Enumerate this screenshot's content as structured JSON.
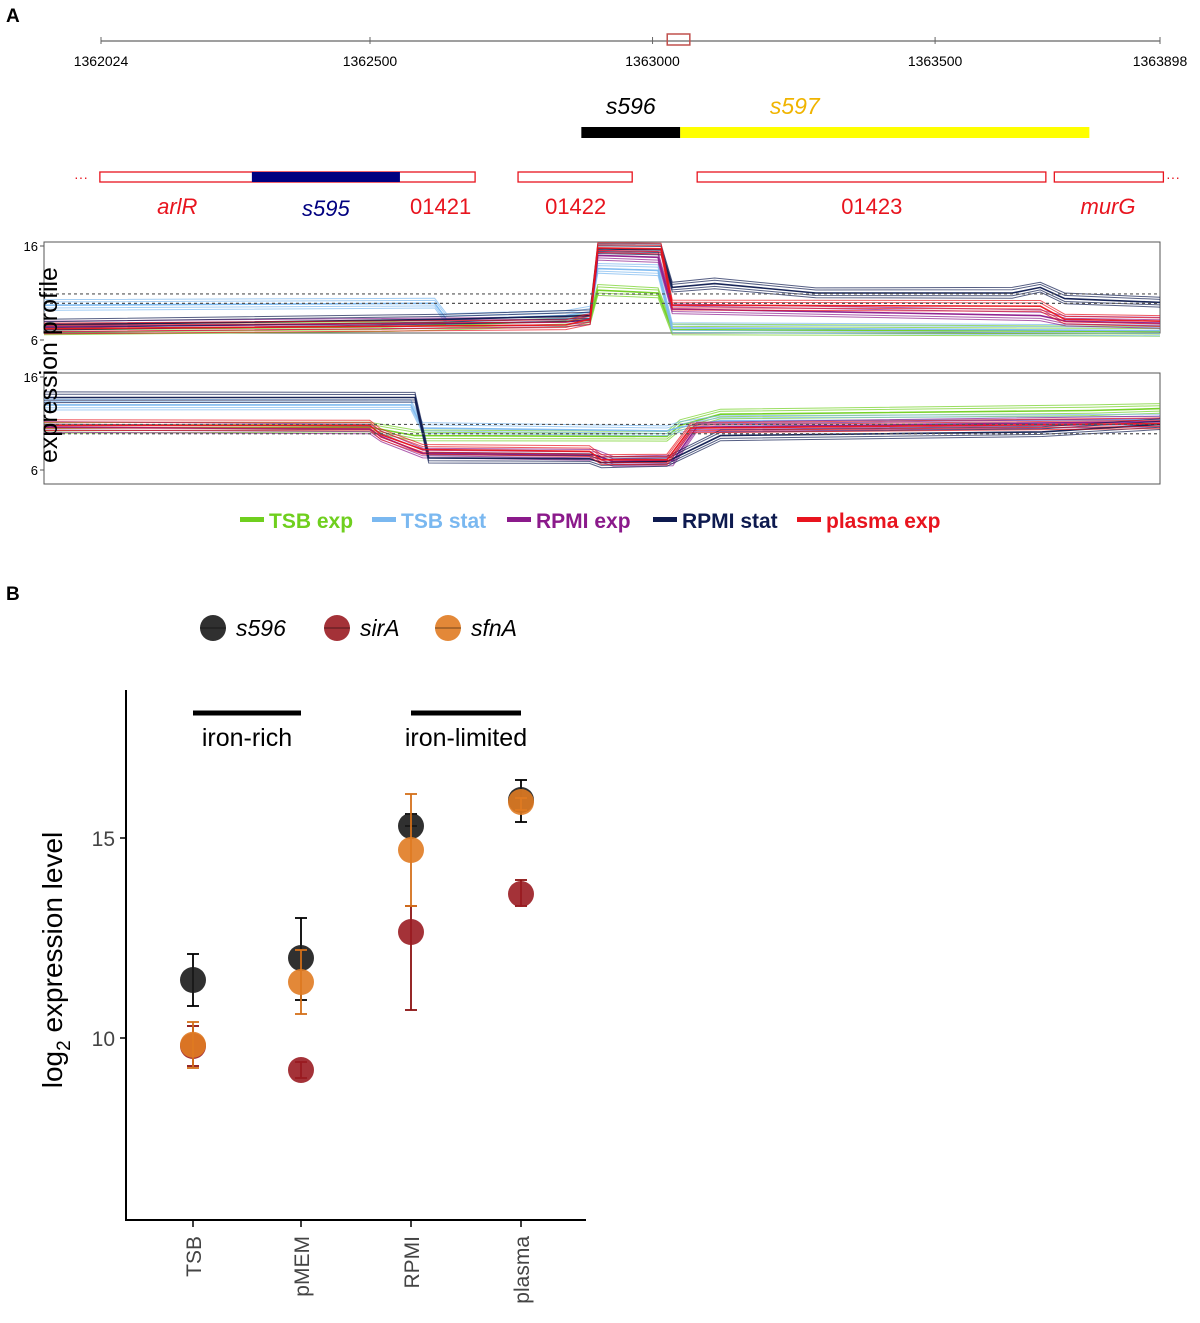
{
  "chart_data": [
    {
      "type": "genome-track",
      "panel_label": "A",
      "axis": {
        "min": 1362024,
        "max": 1363898,
        "ticks": [
          1362024,
          1362500,
          1363000,
          1363500,
          1363898
        ],
        "tick_labels": [
          "1362024",
          "1362500",
          "1363000",
          "1363500",
          "1363898"
        ]
      },
      "highlight": [
        1363026,
        1363066
      ],
      "srnas": [
        {
          "name": "s596",
          "start": 1362874,
          "end": 1363049,
          "color": "#000000",
          "label_color": "#000000"
        },
        {
          "name": "s597",
          "start": 1363049,
          "end": 1363773,
          "color": "#ffff00",
          "label_color": "#f0b400"
        }
      ],
      "genes": [
        {
          "name": "arlR",
          "italic": true,
          "start": 1362022,
          "end": 1362686,
          "label_pos": 1362159
        },
        {
          "name": "01421",
          "italic": false,
          "start": 1362022,
          "end": 1362686,
          "label_pos": 1362625
        },
        {
          "name": "01422",
          "italic": false,
          "start": 1362762,
          "end": 1362964,
          "label_pos": 1362864
        },
        {
          "name": "01423",
          "italic": false,
          "start": 1363079,
          "end": 1363696,
          "label_pos": 1363388
        },
        {
          "name": "murG",
          "italic": true,
          "start": 1363711,
          "end": 1363904,
          "label_pos": 1363806
        }
      ],
      "inner_features": [
        {
          "name": "s595",
          "italic": true,
          "start": 1362291,
          "end": 1362553,
          "color": "#000080"
        }
      ],
      "gene_color": "#e8141e"
    },
    {
      "type": "line",
      "ylabel": "expression profile",
      "ylim": [
        6,
        16
      ],
      "yticks": [
        "16",
        "6"
      ],
      "thresholds_top": [
        10.9,
        9.9
      ],
      "thresholds_bottom": [
        10.9,
        9.9
      ],
      "legend": [
        {
          "name": "TSB exp",
          "color": "#6fcf1e"
        },
        {
          "name": "TSB stat",
          "color": "#7ab8f0"
        },
        {
          "name": "RPMI exp",
          "color": "#8b1a8b"
        },
        {
          "name": "RPMI stat",
          "color": "#0d1a4f"
        },
        {
          "name": "plasma exp",
          "color": "#e8141e"
        }
      ],
      "top_strand": [
        {
          "name": "TSB exp",
          "points": [
            [
              1362024,
              7.1
            ],
            [
              1362600,
              7.4
            ],
            [
              1362900,
              8.0
            ],
            [
              1362941,
              8.2
            ],
            [
              1362954,
              11.3
            ],
            [
              1363055,
              11.0
            ],
            [
              1363079,
              7.1
            ],
            [
              1363898,
              6.9
            ]
          ]
        },
        {
          "name": "TSB stat",
          "points": [
            [
              1362024,
              9.7
            ],
            [
              1362680,
              9.9
            ],
            [
              1362700,
              8.2
            ],
            [
              1362900,
              8.6
            ],
            [
              1362941,
              9.0
            ],
            [
              1362954,
              13.6
            ],
            [
              1363055,
              13.4
            ],
            [
              1363079,
              7.3
            ],
            [
              1363898,
              7.0
            ]
          ]
        },
        {
          "name": "RPMI exp",
          "points": [
            [
              1362024,
              7.4
            ],
            [
              1362900,
              7.9
            ],
            [
              1362941,
              8.2
            ],
            [
              1362954,
              15.0
            ],
            [
              1363055,
              14.8
            ],
            [
              1363079,
              9.3
            ],
            [
              1363697,
              8.6
            ],
            [
              1363740,
              8.0
            ],
            [
              1363898,
              7.8
            ]
          ]
        },
        {
          "name": "RPMI stat",
          "points": [
            [
              1362024,
              7.6
            ],
            [
              1362700,
              8.2
            ],
            [
              1362941,
              8.6
            ],
            [
              1362954,
              15.7
            ],
            [
              1363060,
              15.6
            ],
            [
              1363079,
              11.6
            ],
            [
              1363150,
              12.0
            ],
            [
              1363320,
              11.0
            ],
            [
              1363650,
              11.0
            ],
            [
              1363697,
              11.6
            ],
            [
              1363738,
              10.4
            ],
            [
              1363898,
              10.0
            ]
          ]
        },
        {
          "name": "plasma exp",
          "points": [
            [
              1362024,
              7.2
            ],
            [
              1362900,
              7.6
            ],
            [
              1362941,
              8.2
            ],
            [
              1362954,
              15.8
            ],
            [
              1363060,
              15.7
            ],
            [
              1363079,
              9.7
            ],
            [
              1363697,
              9.6
            ],
            [
              1363738,
              8.2
            ],
            [
              1363898,
              8.0
            ]
          ]
        }
      ],
      "bottom_strand": [
        {
          "name": "TSB exp",
          "points": [
            [
              1362024,
              10.5
            ],
            [
              1362570,
              10.6
            ],
            [
              1362647,
              9.7
            ],
            [
              1363070,
              9.6
            ],
            [
              1363092,
              10.8
            ],
            [
              1363160,
              12.0
            ],
            [
              1363780,
              12.4
            ],
            [
              1363898,
              12.6
            ]
          ]
        },
        {
          "name": "TSB stat",
          "points": [
            [
              1362024,
              13.0
            ],
            [
              1362640,
              13.0
            ],
            [
              1362660,
              10.5
            ],
            [
              1363070,
              10.2
            ],
            [
              1363092,
              10.6
            ],
            [
              1363160,
              11.3
            ],
            [
              1363898,
              11.4
            ]
          ]
        },
        {
          "name": "RPMI exp",
          "points": [
            [
              1362024,
              10.6
            ],
            [
              1362571,
              10.4
            ],
            [
              1362590,
              9.6
            ],
            [
              1362660,
              7.8
            ],
            [
              1362950,
              7.6
            ],
            [
              1362980,
              6.9
            ],
            [
              1363080,
              7.0
            ],
            [
              1363120,
              10.6
            ],
            [
              1363898,
              11.2
            ]
          ]
        },
        {
          "name": "RPMI stat",
          "points": [
            [
              1362024,
              13.8
            ],
            [
              1362647,
              13.8
            ],
            [
              1362670,
              7.3
            ],
            [
              1362940,
              7.2
            ],
            [
              1362960,
              6.8
            ],
            [
              1363070,
              6.9
            ],
            [
              1363160,
              9.7
            ],
            [
              1363700,
              10.1
            ],
            [
              1363898,
              10.9
            ]
          ]
        },
        {
          "name": "plasma exp",
          "points": [
            [
              1362024,
              10.8
            ],
            [
              1362571,
              10.8
            ],
            [
              1362590,
              9.8
            ],
            [
              1362660,
              8.2
            ],
            [
              1362940,
              8.0
            ],
            [
              1362960,
              7.1
            ],
            [
              1363070,
              7.1
            ],
            [
              1363110,
              10.5
            ],
            [
              1363898,
              11.0
            ]
          ]
        }
      ]
    },
    {
      "type": "scatter",
      "panel_label": "B",
      "ylabel_main": "log",
      "ylabel_sub": "2",
      "ylabel_rest": " expression level",
      "ylim": [
        5.45,
        18.7
      ],
      "yticks": [
        10,
        15
      ],
      "ytick_labels": [
        "10",
        "15"
      ],
      "categories": [
        "TSB",
        "pMEM",
        "RPMI",
        "plasma"
      ],
      "groups": [
        {
          "label": "iron-rich",
          "from": "TSB",
          "to": "pMEM",
          "level": 18.1
        },
        {
          "label": "iron-limited",
          "from": "RPMI",
          "to": "plasma",
          "level": 18.1
        }
      ],
      "series": [
        {
          "name": "s596",
          "color": "#1a1a1a",
          "err_color": "#000000",
          "values": [
            11.45,
            12.0,
            15.3,
            15.95
          ],
          "err_low": [
            10.8,
            10.95,
            15.3,
            15.4
          ],
          "err_high": [
            12.1,
            13.0,
            15.6,
            16.45
          ]
        },
        {
          "name": "sirA",
          "color": "#9a1c22",
          "err_color": "#8b1010",
          "values": [
            9.8,
            9.2,
            12.65,
            13.6
          ],
          "err_low": [
            9.3,
            9.0,
            10.7,
            13.3
          ],
          "err_high": [
            10.3,
            9.4,
            13.3,
            13.95
          ]
        },
        {
          "name": "sfnA",
          "color": "#e07b22",
          "err_color": "#d4701a",
          "values": [
            9.83,
            11.4,
            14.7,
            15.9
          ],
          "err_low": [
            9.25,
            10.6,
            13.3,
            15.7
          ],
          "err_high": [
            10.4,
            12.2,
            16.1,
            16.0
          ]
        }
      ]
    }
  ]
}
